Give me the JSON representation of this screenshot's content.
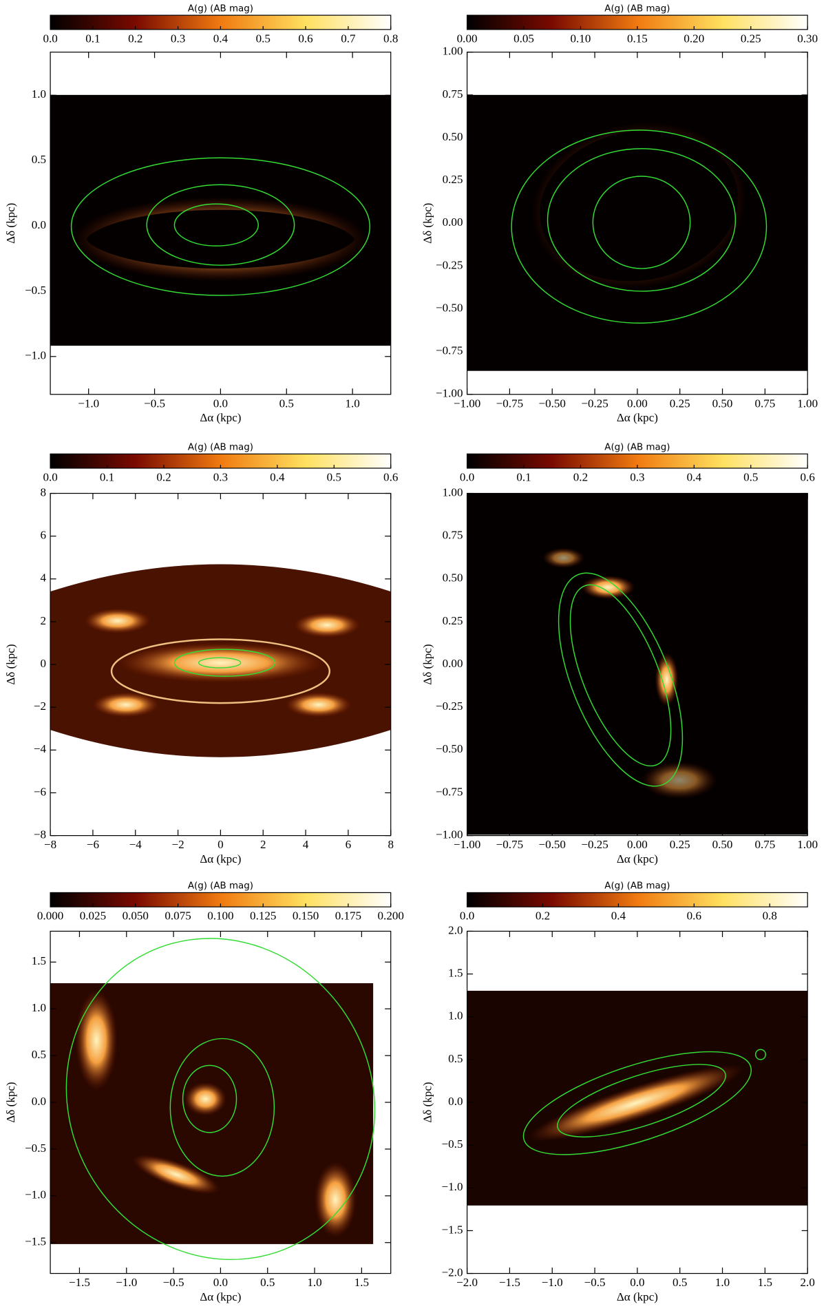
{
  "chart_data": [
    {
      "type": "image",
      "colorbar_label": "A(g) (AB mag)",
      "clim": [
        0,
        0.8
      ],
      "cticks": [
        {
          "value": 0,
          "label": "0.0"
        },
        0.1,
        0.2,
        0.3,
        0.4,
        0.5,
        0.6,
        0.7,
        0.8
      ],
      "xlabel": "Δα (kpc)",
      "ylabel": "Δδ (kpc)",
      "xlim": [
        -1.29,
        1.29
      ],
      "ylim": [
        -1.29,
        1.33
      ],
      "xticks": [
        {
          "value": -1,
          "label": "−1.0"
        },
        {
          "value": -0.5,
          "label": "−0.5"
        },
        {
          "value": 0,
          "label": "0.0"
        },
        0.5,
        {
          "value": 1,
          "label": "1.0"
        }
      ],
      "yticks": [
        {
          "value": -1,
          "label": "−1.0"
        },
        {
          "value": -0.5,
          "label": "−0.5"
        },
        {
          "value": 0,
          "label": "0.0"
        },
        0.5,
        {
          "value": 1,
          "label": "1.0"
        }
      ]
    },
    {
      "type": "image",
      "colorbar_label": "A(g) (AB mag)",
      "clim": [
        0,
        0.3
      ],
      "cticks": [
        {
          "value": 0,
          "label": "0.00"
        },
        0.05,
        {
          "value": 0.1,
          "label": "0.10"
        },
        0.15,
        {
          "value": 0.2,
          "label": "0.20"
        },
        0.25,
        {
          "value": 0.3,
          "label": "0.30"
        }
      ],
      "xlabel": "Δα (kpc)",
      "ylabel": "Δδ (kpc)",
      "xlim": [
        -1,
        1
      ],
      "ylim": [
        -1,
        1
      ],
      "xticks": [
        {
          "value": -1,
          "label": "−1.00"
        },
        {
          "value": -0.75,
          "label": "−0.75"
        },
        {
          "value": -0.5,
          "label": "−0.50"
        },
        {
          "value": -0.25,
          "label": "−0.25"
        },
        {
          "value": 0,
          "label": "0.00"
        },
        0.25,
        {
          "value": 0.5,
          "label": "0.50"
        },
        0.75,
        {
          "value": 1,
          "label": "1.00"
        }
      ],
      "yticks": [
        {
          "value": -1,
          "label": "−1.00"
        },
        {
          "value": -0.75,
          "label": "−0.75"
        },
        {
          "value": -0.5,
          "label": "−0.50"
        },
        {
          "value": -0.25,
          "label": "−0.25"
        },
        {
          "value": 0,
          "label": "0.00"
        },
        0.25,
        {
          "value": 0.5,
          "label": "0.50"
        },
        0.75,
        {
          "value": 1,
          "label": "1.00"
        }
      ]
    },
    {
      "type": "image",
      "colorbar_label": "A(g) (AB mag)",
      "clim": [
        0,
        0.6
      ],
      "cticks": [
        {
          "value": 0,
          "label": "0.0"
        },
        0.1,
        0.2,
        0.3,
        0.4,
        0.5,
        0.6
      ],
      "xlabel": "Δα (kpc)",
      "ylabel": "Δδ (kpc)",
      "xlim": [
        -8,
        8
      ],
      "ylim": [
        -8,
        8
      ],
      "xticks": [
        {
          "value": -8,
          "label": "−8"
        },
        {
          "value": -6,
          "label": "−6"
        },
        {
          "value": -4,
          "label": "−4"
        },
        {
          "value": -2,
          "label": "−2"
        },
        0,
        2,
        4,
        6,
        8
      ],
      "yticks": [
        {
          "value": -8,
          "label": "−8"
        },
        {
          "value": -6,
          "label": "−6"
        },
        {
          "value": -4,
          "label": "−4"
        },
        {
          "value": -2,
          "label": "−2"
        },
        0,
        2,
        4,
        6,
        8
      ]
    },
    {
      "type": "image",
      "colorbar_label": "A(g) (AB mag)",
      "clim": [
        0,
        0.6
      ],
      "cticks": [
        {
          "value": 0,
          "label": "0.0"
        },
        0.1,
        0.2,
        0.3,
        0.4,
        0.5,
        0.6
      ],
      "xlabel": "Δα (kpc)",
      "ylabel": "Δδ (kpc)",
      "xlim": [
        -1,
        1
      ],
      "ylim": [
        -1,
        1
      ],
      "xticks": [
        {
          "value": -1,
          "label": "−1.00"
        },
        {
          "value": -0.75,
          "label": "−0.75"
        },
        {
          "value": -0.5,
          "label": "−0.50"
        },
        {
          "value": -0.25,
          "label": "−0.25"
        },
        {
          "value": 0,
          "label": "0.00"
        },
        0.25,
        {
          "value": 0.5,
          "label": "0.50"
        },
        0.75,
        {
          "value": 1,
          "label": "1.00"
        }
      ],
      "yticks": [
        {
          "value": -1,
          "label": "−1.00"
        },
        {
          "value": -0.75,
          "label": "−0.75"
        },
        {
          "value": -0.5,
          "label": "−0.50"
        },
        {
          "value": -0.25,
          "label": "−0.25"
        },
        {
          "value": 0,
          "label": "0.00"
        },
        0.25,
        {
          "value": 0.5,
          "label": "0.50"
        },
        0.75,
        {
          "value": 1,
          "label": "1.00"
        }
      ]
    },
    {
      "type": "image",
      "colorbar_label": "A(g) (AB mag)",
      "clim": [
        0,
        0.2
      ],
      "cticks": [
        {
          "value": 0,
          "label": "0.000"
        },
        0.025,
        {
          "value": 0.05,
          "label": "0.050"
        },
        0.075,
        {
          "value": 0.1,
          "label": "0.100"
        },
        0.125,
        {
          "value": 0.15,
          "label": "0.150"
        },
        0.175,
        {
          "value": 0.2,
          "label": "0.200"
        }
      ],
      "xlabel": "Δα (kpc)",
      "ylabel": "Δδ (kpc)",
      "xlim": [
        -1.81,
        1.81
      ],
      "ylim": [
        -1.83,
        1.83
      ],
      "xticks": [
        {
          "value": -1.5,
          "label": "−1.5"
        },
        {
          "value": -1,
          "label": "−1.0"
        },
        {
          "value": -0.5,
          "label": "−0.5"
        },
        {
          "value": 0,
          "label": "0.0"
        },
        0.5,
        {
          "value": 1,
          "label": "1.0"
        },
        1.5
      ],
      "yticks": [
        {
          "value": -1.5,
          "label": "−1.5"
        },
        {
          "value": -1,
          "label": "−1.0"
        },
        {
          "value": -0.5,
          "label": "−0.5"
        },
        {
          "value": 0,
          "label": "0.0"
        },
        0.5,
        {
          "value": 1,
          "label": "1.0"
        },
        1.5
      ]
    },
    {
      "type": "image",
      "colorbar_label": "A(g) (AB mag)",
      "clim": [
        0,
        0.9
      ],
      "cticks": [
        {
          "value": 0,
          "label": "0.0"
        },
        0.2,
        0.4,
        0.6,
        0.8
      ],
      "xlabel": "Δα (kpc)",
      "ylabel": "Δδ (kpc)",
      "xlim": [
        -2,
        2
      ],
      "ylim": [
        -2,
        2
      ],
      "xticks": [
        {
          "value": -2,
          "label": "−2.0"
        },
        {
          "value": -1.5,
          "label": "−1.5"
        },
        {
          "value": -1,
          "label": "−1.0"
        },
        {
          "value": -0.5,
          "label": "−0.5"
        },
        {
          "value": 0,
          "label": "0.0"
        },
        0.5,
        {
          "value": 1,
          "label": "1.0"
        },
        1.5,
        {
          "value": 2,
          "label": "2.0"
        }
      ],
      "yticks": [
        {
          "value": -2,
          "label": "−2.0"
        },
        {
          "value": -1.5,
          "label": "−1.5"
        },
        {
          "value": -1,
          "label": "−1.0"
        },
        {
          "value": -0.5,
          "label": "−0.5"
        },
        {
          "value": 0,
          "label": "0.0"
        },
        0.5,
        {
          "value": 1,
          "label": "1.0"
        },
        1.5,
        {
          "value": 2,
          "label": "2.0"
        }
      ]
    }
  ]
}
